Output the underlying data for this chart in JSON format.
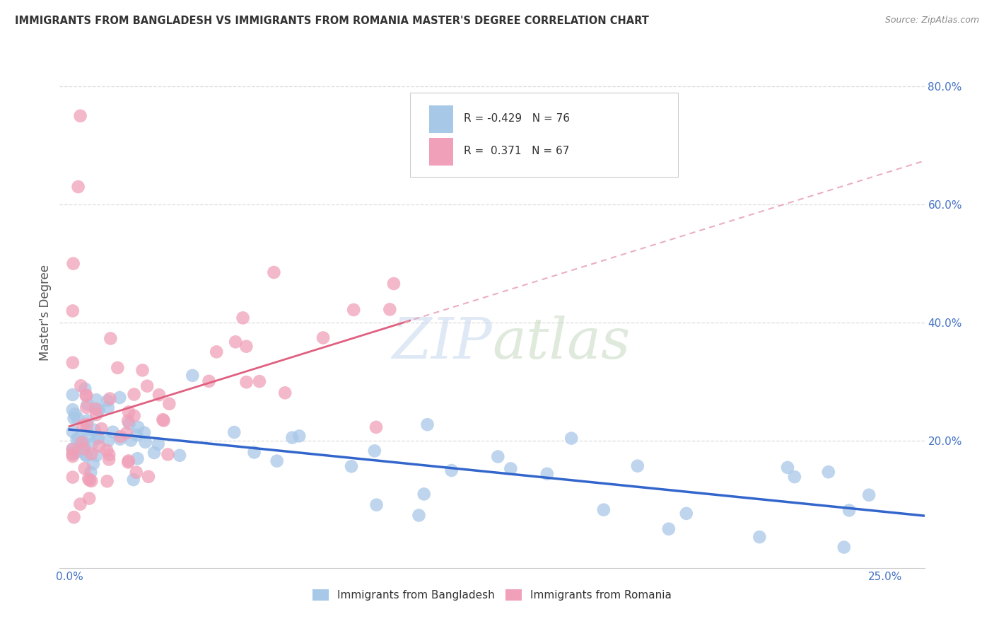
{
  "title": "IMMIGRANTS FROM BANGLADESH VS IMMIGRANTS FROM ROMANIA MASTER'S DEGREE CORRELATION CHART",
  "source": "Source: ZipAtlas.com",
  "ylabel": "Master's Degree",
  "bangladesh_color": "#a8c8e8",
  "romania_color": "#f0a0b8",
  "bangladesh_line_color": "#3366cc",
  "romania_line_color": "#e06080",
  "romania_dash_color": "#e8a0b8",
  "background_color": "#ffffff",
  "grid_color": "#dddddd",
  "watermark": "ZIPatlas",
  "xlim_max": 0.26,
  "ylim_max": 0.85,
  "bangladesh_R": -0.429,
  "bangladesh_N": 76,
  "romania_R": 0.371,
  "romania_N": 67,
  "bangladesh_seed": 77,
  "romania_seed": 55
}
